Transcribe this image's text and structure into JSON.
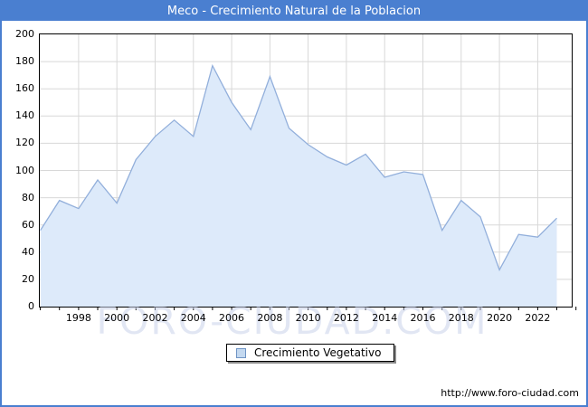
{
  "window": {
    "title": "Meco - Crecimiento Natural de la Poblacion"
  },
  "chart_data": {
    "type": "area",
    "title": "Meco - Crecimiento Natural de la Poblacion",
    "x": [
      1996,
      1997,
      1998,
      1999,
      2000,
      2001,
      2002,
      2003,
      2004,
      2005,
      2006,
      2007,
      2008,
      2009,
      2010,
      2011,
      2012,
      2013,
      2014,
      2015,
      2016,
      2017,
      2018,
      2019,
      2020,
      2021,
      2022,
      2023
    ],
    "series": [
      {
        "name": "Crecimiento Vegetativo",
        "values": [
          56,
          78,
          72,
          93,
          76,
          108,
          125,
          137,
          125,
          177,
          150,
          130,
          169,
          131,
          119,
          110,
          104,
          112,
          95,
          99,
          97,
          56,
          78,
          66,
          27,
          53,
          51,
          65
        ]
      }
    ],
    "ylim": [
      0,
      200
    ],
    "ytick_step": 20,
    "x_tick_labels": [
      1998,
      2000,
      2002,
      2004,
      2006,
      2008,
      2010,
      2012,
      2014,
      2016,
      2018,
      2020,
      2022
    ],
    "grid": true,
    "legend_position": "bottom-center",
    "xlabel": "",
    "ylabel": ""
  },
  "legend": {
    "label": "Crecimiento Vegetativo"
  },
  "watermark": {
    "text": "FORO-CIUDAD.COM"
  },
  "footer": {
    "url": "http://www.foro-ciudad.com"
  },
  "colors": {
    "accent": "#4a7fd0",
    "line": "#92afdb",
    "fill": "#ddeafa",
    "grid": "#d8d8d8",
    "legend_swatch_fill": "#c4d9f0",
    "legend_swatch_border": "#6f94c4",
    "watermark": "#c9d2ea"
  }
}
